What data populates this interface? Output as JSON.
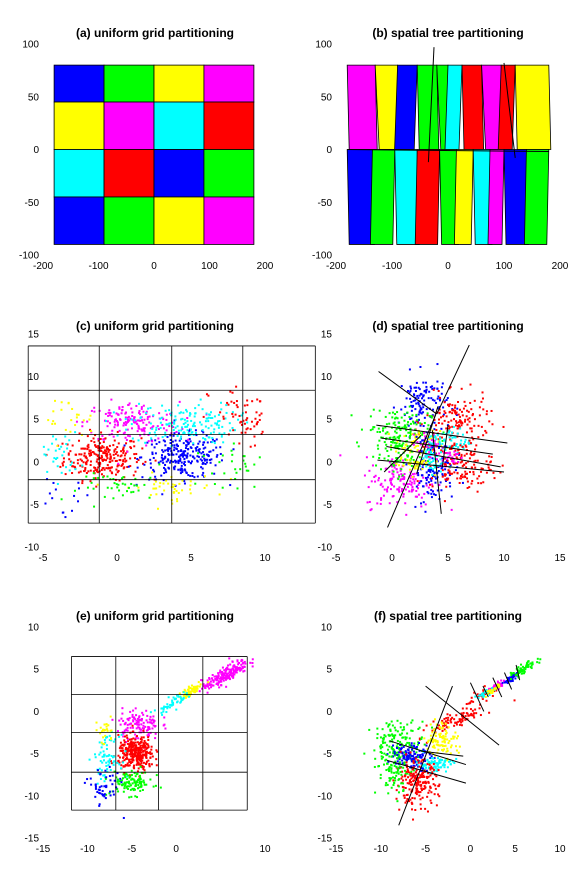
{
  "colors": {
    "blue": "#0000ff",
    "green": "#00ff00",
    "yellow": "#ffff00",
    "magenta": "#ff00ff",
    "cyan": "#00ffff",
    "red": "#ff0000"
  },
  "chart_data": [
    {
      "type": "heatmap",
      "title": "(a) uniform grid partitioning",
      "xlim": [
        -200,
        200
      ],
      "ylim": [
        -100,
        100
      ],
      "xticks": [
        "-200",
        "-100",
        "0",
        "100",
        "200"
      ],
      "yticks": [
        "-100",
        "-50",
        "0",
        "50",
        "100"
      ],
      "grid_cols": [
        -180,
        -90,
        0,
        90,
        180
      ],
      "grid_rows": [
        -90,
        -45,
        0,
        45,
        80
      ],
      "cells": [
        [
          "blue",
          "green",
          "yellow",
          "magenta"
        ],
        [
          "yellow",
          "magenta",
          "cyan",
          "red"
        ],
        [
          "cyan",
          "red",
          "blue",
          "green"
        ],
        [
          "blue",
          "green",
          "yellow",
          "magenta"
        ]
      ]
    },
    {
      "type": "heatmap",
      "title": "(b) spatial tree partitioning",
      "xlim": [
        -200,
        200
      ],
      "ylim": [
        -100,
        100
      ],
      "xticks": [
        "-200",
        "-100",
        "0",
        "100",
        "200"
      ],
      "yticks": [
        "-100",
        "-50",
        "0",
        "50",
        "100"
      ],
      "split_y": 0,
      "top_strips": [
        {
          "x0": -180,
          "x1": -130,
          "color": "magenta"
        },
        {
          "x0": -130,
          "x1": -90,
          "color": "yellow"
        },
        {
          "x0": -90,
          "x1": -55,
          "color": "blue"
        },
        {
          "x0": -55,
          "x1": -20,
          "color": "green"
        },
        {
          "x0": -20,
          "x1": 0,
          "color": "green"
        },
        {
          "x0": 0,
          "x1": 25,
          "color": "cyan"
        },
        {
          "x0": 25,
          "x1": 60,
          "color": "red"
        },
        {
          "x0": 60,
          "x1": 95,
          "color": "magenta"
        },
        {
          "x0": 95,
          "x1": 120,
          "color": "red"
        },
        {
          "x0": 120,
          "x1": 180,
          "color": "yellow"
        }
      ],
      "bottom_strips": [
        {
          "x0": -180,
          "x1": -135,
          "color": "blue"
        },
        {
          "x0": -135,
          "x1": -95,
          "color": "green"
        },
        {
          "x0": -95,
          "x1": -55,
          "color": "cyan"
        },
        {
          "x0": -55,
          "x1": -15,
          "color": "red"
        },
        {
          "x0": -15,
          "x1": 15,
          "color": "green"
        },
        {
          "x0": 15,
          "x1": 45,
          "color": "yellow"
        },
        {
          "x0": 45,
          "x1": 75,
          "color": "cyan"
        },
        {
          "x0": 75,
          "x1": 100,
          "color": "magenta"
        },
        {
          "x0": 100,
          "x1": 140,
          "color": "blue"
        },
        {
          "x0": 140,
          "x1": 180,
          "color": "green"
        }
      ]
    },
    {
      "type": "scatter",
      "title": "(c) uniform grid partitioning",
      "xlim": [
        -5,
        10
      ],
      "ylim": [
        -10,
        15
      ],
      "xticks": [
        "-5",
        "0",
        "5",
        "10"
      ],
      "yticks": [
        "-10",
        "-5",
        "0",
        "5",
        "10",
        "15"
      ],
      "grid_x": [
        -6,
        -1.2,
        3.7,
        8.5
      ],
      "grid_xlines": [
        -6,
        -1.2,
        3.7,
        8.5,
        13.4
      ],
      "grid_ylines": [
        -7.2,
        -2.1,
        3.2,
        8.4,
        13.6
      ],
      "clusters": [
        {
          "color": "red",
          "cx": -1,
          "cy": 0.5,
          "sx": 1.3,
          "sy": 1.3,
          "n": 260
        },
        {
          "color": "blue",
          "cx": 4.5,
          "cy": 0.6,
          "sx": 1.4,
          "sy": 1.3,
          "n": 260
        },
        {
          "color": "magenta",
          "cx": 1.0,
          "cy": 4.6,
          "sx": 1.6,
          "sy": 1.2,
          "n": 160
        },
        {
          "color": "cyan",
          "cx": 4.5,
          "cy": 4.5,
          "sx": 1.8,
          "sy": 1.2,
          "n": 160
        },
        {
          "color": "red",
          "cx": 9.0,
          "cy": 5.0,
          "sx": 1.4,
          "sy": 2.0,
          "n": 70
        },
        {
          "color": "cyan",
          "cx": -4.5,
          "cy": 0.8,
          "sx": 1.0,
          "sy": 1.3,
          "n": 50
        },
        {
          "color": "yellow",
          "cx": 3.5,
          "cy": -3.0,
          "sx": 1.6,
          "sy": 0.8,
          "n": 45
        },
        {
          "color": "yellow",
          "cx": -3.5,
          "cy": 5.0,
          "sx": 1.0,
          "sy": 1.2,
          "n": 25
        },
        {
          "color": "green",
          "cx": 0.5,
          "cy": -3.0,
          "sx": 1.5,
          "sy": 0.8,
          "n": 40
        },
        {
          "color": "green",
          "cx": 8.5,
          "cy": -0.5,
          "sx": 1.5,
          "sy": 1.2,
          "n": 35
        },
        {
          "color": "blue",
          "cx": -4.0,
          "cy": -4.5,
          "sx": 1.2,
          "sy": 1.3,
          "n": 18
        }
      ]
    },
    {
      "type": "scatter",
      "title": "(d) spatial tree partitioning",
      "xlim": [
        -5,
        15
      ],
      "ylim": [
        -10,
        15
      ],
      "xticks": [
        "-5",
        "0",
        "5",
        "10",
        "15"
      ],
      "yticks": [
        "-10",
        "-5",
        "0",
        "5",
        "10",
        "15"
      ],
      "clusters": [
        {
          "color": "blue",
          "cx": 2.8,
          "cy": 6.8,
          "sx": 1.1,
          "sy": 1.8,
          "n": 130
        },
        {
          "color": "red",
          "cx": 5.8,
          "cy": 4.7,
          "sx": 1.4,
          "sy": 1.5,
          "n": 140
        },
        {
          "color": "green",
          "cx": 0.6,
          "cy": 3.8,
          "sx": 1.4,
          "sy": 1.3,
          "n": 130
        },
        {
          "color": "yellow",
          "cx": 2.3,
          "cy": 2.0,
          "sx": 1.0,
          "sy": 0.8,
          "n": 70
        },
        {
          "color": "magenta",
          "cx": 3.4,
          "cy": 2.1,
          "sx": 0.6,
          "sy": 0.6,
          "n": 40
        },
        {
          "color": "cyan",
          "cx": 5.1,
          "cy": 2.4,
          "sx": 1.0,
          "sy": 0.8,
          "n": 70
        },
        {
          "color": "magenta",
          "cx": 0.8,
          "cy": -2.4,
          "sx": 1.6,
          "sy": 1.5,
          "n": 140
        },
        {
          "color": "blue",
          "cx": 3.6,
          "cy": -1.0,
          "sx": 1.0,
          "sy": 1.8,
          "n": 110
        },
        {
          "color": "red",
          "cx": 6.2,
          "cy": -0.4,
          "sx": 1.4,
          "sy": 1.4,
          "n": 140
        },
        {
          "color": "green",
          "cx": 0.4,
          "cy": 0.5,
          "sx": 1.0,
          "sy": 1.0,
          "n": 60
        },
        {
          "color": "yellow",
          "cx": 2.0,
          "cy": -0.3,
          "sx": 0.8,
          "sy": 0.5,
          "n": 40
        },
        {
          "color": "cyan",
          "cx": 3.5,
          "cy": 0.2,
          "sx": 0.5,
          "sy": 0.8,
          "n": 40
        },
        {
          "color": "magenta",
          "cx": 5.0,
          "cy": 0.6,
          "sx": 0.7,
          "sy": 0.5,
          "n": 30
        }
      ],
      "lines": [
        [
          [
            -1.2,
            10.6
          ],
          [
            4.0,
            5.6
          ]
        ],
        [
          [
            4.0,
            5.6
          ],
          [
            6.9,
            13.7
          ]
        ],
        [
          [
            -1.4,
            4.3
          ],
          [
            10.3,
            2.2
          ]
        ],
        [
          [
            -1.0,
            2.8
          ],
          [
            9.0,
            0.9
          ]
        ],
        [
          [
            -0.5,
            1.8
          ],
          [
            9.7,
            -0.6
          ]
        ],
        [
          [
            -1.3,
            0.2
          ],
          [
            10.0,
            -1.2
          ]
        ],
        [
          [
            -0.4,
            -7.7
          ],
          [
            3.9,
            5.5
          ]
        ],
        [
          [
            2.2,
            -1.4
          ],
          [
            4.1,
            6.5
          ]
        ],
        [
          [
            3.6,
            3.7
          ],
          [
            4.4,
            -6.1
          ]
        ],
        [
          [
            5.0,
            4.3
          ],
          [
            4.5,
            -0.6
          ]
        ],
        [
          [
            -0.7,
            -1.2
          ],
          [
            2.6,
            3.1
          ]
        ]
      ]
    },
    {
      "type": "scatter",
      "title": "(e) uniform grid partitioning",
      "xlim": [
        -15,
        10
      ],
      "ylim": [
        -15,
        10
      ],
      "xticks": [
        "-15",
        "-10",
        "-5",
        "0",
        "10"
      ],
      "yticks": [
        "-15",
        "-10",
        "-5",
        "0",
        "5",
        "10"
      ],
      "grid_xlines": [
        -11.8,
        -6.8,
        -2.0,
        3.0,
        8.0
      ],
      "grid_ylines": [
        -11.7,
        -7.2,
        -2.5,
        2.0,
        6.5
      ],
      "clusters": [
        {
          "color": "magenta",
          "cx": 5.5,
          "cy": 4.3,
          "sx": 1.3,
          "sy": 0.9,
          "n": 200,
          "corr": 0.85
        },
        {
          "color": "yellow",
          "cx": 1.8,
          "cy": 2.5,
          "sx": 0.7,
          "sy": 0.5,
          "n": 60,
          "corr": 0.8
        },
        {
          "color": "cyan",
          "cx": -0.5,
          "cy": 1.0,
          "sx": 0.8,
          "sy": 0.6,
          "n": 50,
          "corr": 0.8
        },
        {
          "color": "magenta",
          "cx": -4.3,
          "cy": -1.5,
          "sx": 1.2,
          "sy": 0.9,
          "n": 120
        },
        {
          "color": "red",
          "cx": -4.5,
          "cy": -5.0,
          "sx": 1.0,
          "sy": 1.0,
          "n": 320
        },
        {
          "color": "cyan",
          "cx": -7.8,
          "cy": -5.5,
          "sx": 0.7,
          "sy": 1.3,
          "n": 70
        },
        {
          "color": "green",
          "cx": -5.0,
          "cy": -8.5,
          "sx": 1.2,
          "sy": 0.7,
          "n": 110
        },
        {
          "color": "blue",
          "cx": -8.2,
          "cy": -9.0,
          "sx": 0.9,
          "sy": 1.2,
          "n": 50
        },
        {
          "color": "yellow",
          "cx": -8.0,
          "cy": -2.5,
          "sx": 0.6,
          "sy": 0.8,
          "n": 25
        }
      ]
    },
    {
      "type": "scatter",
      "title": "(f) spatial tree partitioning",
      "xlim": [
        -15,
        10
      ],
      "ylim": [
        -15,
        10
      ],
      "xticks": [
        "-15",
        "-10",
        "-5",
        "0",
        "5",
        "10"
      ],
      "yticks": [
        "-15",
        "-10",
        "-5",
        "0",
        "5",
        "10"
      ],
      "clusters": [
        {
          "color": "red",
          "cx": -1.5,
          "cy": -1.0,
          "sx": 1.5,
          "sy": 0.8,
          "n": 90,
          "corr": 0.8
        },
        {
          "color": "red",
          "cx": 1.5,
          "cy": 2.0,
          "sx": 1.0,
          "sy": 0.6,
          "n": 50,
          "corr": 0.8
        },
        {
          "color": "magenta",
          "cx": 3.0,
          "cy": 3.0,
          "sx": 0.4,
          "sy": 0.3,
          "n": 40,
          "corr": 0.8
        },
        {
          "color": "cyan",
          "cx": 1.6,
          "cy": 2.1,
          "sx": 0.5,
          "sy": 0.4,
          "n": 30,
          "corr": 0.8
        },
        {
          "color": "yellow",
          "cx": 2.5,
          "cy": 2.5,
          "sx": 0.4,
          "sy": 0.3,
          "n": 25,
          "corr": 0.8
        },
        {
          "color": "blue",
          "cx": 4.5,
          "cy": 3.9,
          "sx": 0.4,
          "sy": 0.3,
          "n": 40,
          "corr": 0.8
        },
        {
          "color": "green",
          "cx": 6.0,
          "cy": 5.0,
          "sx": 0.7,
          "sy": 0.5,
          "n": 60,
          "corr": 0.8
        },
        {
          "color": "green",
          "cx": -8.0,
          "cy": -4.0,
          "sx": 1.5,
          "sy": 1.5,
          "n": 170
        },
        {
          "color": "yellow",
          "cx": -3.2,
          "cy": -3.3,
          "sx": 0.9,
          "sy": 1.0,
          "n": 100
        },
        {
          "color": "blue",
          "cx": -6.6,
          "cy": -5.3,
          "sx": 1.1,
          "sy": 0.8,
          "n": 120
        },
        {
          "color": "cyan",
          "cx": -4.0,
          "cy": -6.3,
          "sx": 1.0,
          "sy": 0.5,
          "n": 80
        },
        {
          "color": "red",
          "cx": -6.0,
          "cy": -8.5,
          "sx": 1.2,
          "sy": 1.3,
          "n": 200
        },
        {
          "color": "green",
          "cx": -8.5,
          "cy": -7.5,
          "sx": 0.9,
          "sy": 1.2,
          "n": 60
        }
      ],
      "lines": [
        [
          [
            -5.0,
            3.0
          ],
          [
            3.2,
            -4.0
          ]
        ],
        [
          [
            -8.0,
            -13.5
          ],
          [
            -2.0,
            3.0
          ]
        ],
        [
          [
            -9.0,
            -3.5
          ],
          [
            -0.5,
            -6.3
          ]
        ],
        [
          [
            -9.3,
            -5.8
          ],
          [
            -0.5,
            -8.5
          ]
        ],
        [
          [
            -5.5,
            -4.7
          ],
          [
            -0.8,
            -5.3
          ]
        ],
        [
          [
            0.0,
            3.4
          ],
          [
            1.5,
            0.0
          ]
        ],
        [
          [
            2.5,
            4.0
          ],
          [
            3.5,
            1.7
          ]
        ],
        [
          [
            3.8,
            4.6
          ],
          [
            4.6,
            2.6
          ]
        ],
        [
          [
            5.1,
            5.5
          ],
          [
            5.5,
            3.7
          ]
        ],
        [
          [
            1.4,
            3.0
          ],
          [
            2.0,
            1.7
          ]
        ]
      ]
    }
  ]
}
